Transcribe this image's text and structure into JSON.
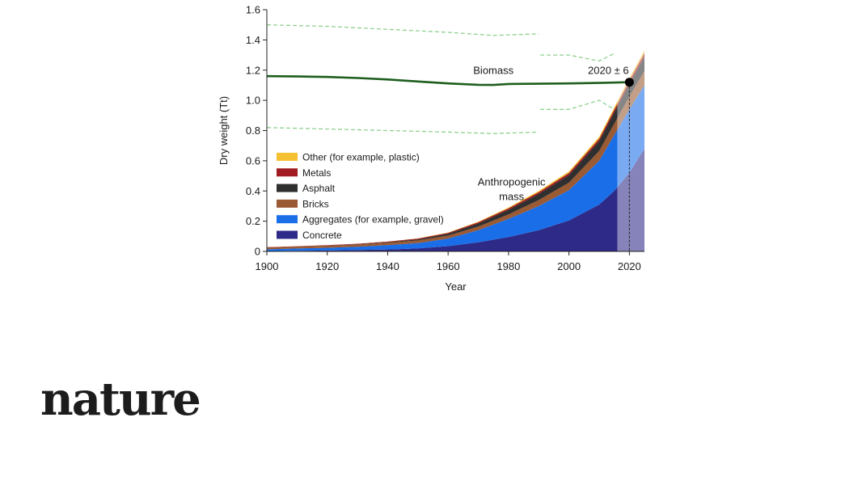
{
  "chart_data": {
    "type": "area",
    "xlabel": "Year",
    "ylabel": "Dry weight (Tt)",
    "xlim": [
      1900,
      2025
    ],
    "ylim": [
      0,
      1.6
    ],
    "x_ticks": [
      1900,
      1920,
      1940,
      1960,
      1980,
      2000,
      2020
    ],
    "y_ticks": [
      0,
      0.2,
      0.4,
      0.6,
      0.8,
      1.0,
      1.2,
      1.4,
      1.6
    ],
    "x": [
      1900,
      1910,
      1920,
      1930,
      1940,
      1950,
      1960,
      1970,
      1980,
      1990,
      2000,
      2010,
      2015,
      2020,
      2025
    ],
    "stack_order": [
      "Concrete",
      "Aggregates (for example, gravel)",
      "Bricks",
      "Asphalt",
      "Metals",
      "Other (for example, plastic)"
    ],
    "series": [
      {
        "name": "Concrete",
        "color": "#2e2a87",
        "values": [
          0.002,
          0.004,
          0.006,
          0.009,
          0.013,
          0.02,
          0.035,
          0.06,
          0.095,
          0.14,
          0.205,
          0.31,
          0.4,
          0.52,
          0.68
        ]
      },
      {
        "name": "Aggregates (for example, gravel)",
        "color": "#1a6ee8",
        "values": [
          0.012,
          0.015,
          0.018,
          0.022,
          0.028,
          0.035,
          0.05,
          0.08,
          0.12,
          0.16,
          0.2,
          0.29,
          0.37,
          0.42,
          0.42
        ]
      },
      {
        "name": "Bricks",
        "color": "#9a5a33",
        "values": [
          0.012,
          0.013,
          0.014,
          0.015,
          0.016,
          0.018,
          0.02,
          0.025,
          0.03,
          0.04,
          0.05,
          0.065,
          0.075,
          0.085,
          0.095
        ]
      },
      {
        "name": "Asphalt",
        "color": "#2f2f2f",
        "values": [
          0.0,
          0.0,
          0.001,
          0.002,
          0.004,
          0.007,
          0.012,
          0.02,
          0.03,
          0.04,
          0.05,
          0.065,
          0.075,
          0.085,
          0.095
        ]
      },
      {
        "name": "Metals",
        "color": "#a01c22",
        "values": [
          0.002,
          0.002,
          0.003,
          0.003,
          0.004,
          0.005,
          0.006,
          0.008,
          0.01,
          0.012,
          0.014,
          0.016,
          0.018,
          0.02,
          0.022
        ]
      },
      {
        "name": "Other (for example, plastic)",
        "color": "#f5c132",
        "values": [
          0.0,
          0.0,
          0.0,
          0.0,
          0.001,
          0.001,
          0.002,
          0.004,
          0.006,
          0.008,
          0.01,
          0.012,
          0.014,
          0.016,
          0.018
        ]
      }
    ],
    "biomass": {
      "name": "Biomass",
      "color": "#1e5e1e",
      "x": [
        1900,
        1910,
        1920,
        1930,
        1940,
        1950,
        1960,
        1970,
        1975,
        1980,
        1990,
        2000,
        2010,
        2020
      ],
      "values": [
        1.16,
        1.158,
        1.155,
        1.148,
        1.138,
        1.125,
        1.112,
        1.103,
        1.102,
        1.108,
        1.11,
        1.112,
        1.115,
        1.12
      ],
      "upper_bound": [
        [
          1900,
          1.5
        ],
        [
          1920,
          1.49
        ],
        [
          1940,
          1.47
        ],
        [
          1960,
          1.45
        ],
        [
          1975,
          1.43
        ],
        [
          1990,
          1.44
        ],
        [
          1990.5,
          1.3
        ],
        [
          2000,
          1.3
        ],
        [
          2010,
          1.26
        ],
        [
          2015,
          1.31
        ]
      ],
      "lower_bound": [
        [
          1900,
          0.82
        ],
        [
          1920,
          0.81
        ],
        [
          1940,
          0.8
        ],
        [
          1960,
          0.79
        ],
        [
          1975,
          0.78
        ],
        [
          1990,
          0.79
        ],
        [
          1990.5,
          0.94
        ],
        [
          2000,
          0.94
        ],
        [
          2010,
          1.0
        ],
        [
          2015,
          0.94
        ]
      ]
    },
    "uncertainty_region_start": 2016,
    "crossover": {
      "label": "2020 ± 6",
      "x": 2020,
      "y": 1.12
    },
    "annotations": [
      {
        "text": "Biomass",
        "x": 1975,
        "y": 1.175
      },
      {
        "text": "Anthropogenic",
        "x": 1981,
        "y": 0.435
      },
      {
        "text": "mass",
        "x": 1981,
        "y": 0.34
      }
    ],
    "legend_position": "bottom-left"
  },
  "branding": {
    "logo_text": "nature"
  }
}
